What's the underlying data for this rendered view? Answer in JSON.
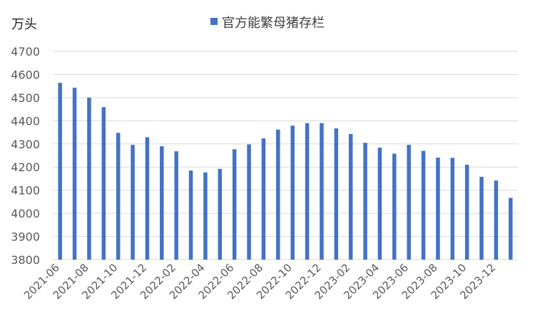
{
  "chart_data": {
    "type": "bar",
    "ylabel": "万头",
    "legend": [
      "官方能繁母猪存栏"
    ],
    "legend_position": "top-center",
    "ylim": [
      3800,
      4700
    ],
    "yticks": [
      3800,
      3900,
      4000,
      4100,
      4200,
      4300,
      4400,
      4500,
      4600,
      4700
    ],
    "grid": true,
    "bar_color": "#4472C4",
    "categories": [
      "2021-06",
      "2021-07",
      "2021-08",
      "2021-09",
      "2021-10",
      "2021-11",
      "2021-12",
      "2022-01",
      "2022-02",
      "2022-03",
      "2022-04",
      "2022-05",
      "2022-06",
      "2022-07",
      "2022-08",
      "2022-09",
      "2022-10",
      "2022-11",
      "2022-12",
      "2023-01",
      "2023-02",
      "2023-03",
      "2023-04",
      "2023-05",
      "2023-06",
      "2023-07",
      "2023-08",
      "2023-09",
      "2023-10",
      "2023-11",
      "2023-12",
      "2024-01"
    ],
    "xtick_labels": [
      "2021-06",
      "2021-08",
      "2021-10",
      "2021-12",
      "2022-02",
      "2022-04",
      "2022-06",
      "2022-08",
      "2022-10",
      "2022-12",
      "2023-02",
      "2023-04",
      "2023-06",
      "2023-08",
      "2023-10",
      "2023-12"
    ],
    "series": [
      {
        "name": "官方能繁母猪存栏",
        "values": [
          4564,
          4543,
          4500,
          4459,
          4348,
          4296,
          4329,
          4290,
          4268,
          4185,
          4177,
          4192,
          4277,
          4298,
          4324,
          4362,
          4379,
          4390,
          4390,
          4367,
          4343,
          4305,
          4284,
          4258,
          4296,
          4270,
          4241,
          4240,
          4210,
          4158,
          4142,
          4067
        ]
      }
    ]
  }
}
